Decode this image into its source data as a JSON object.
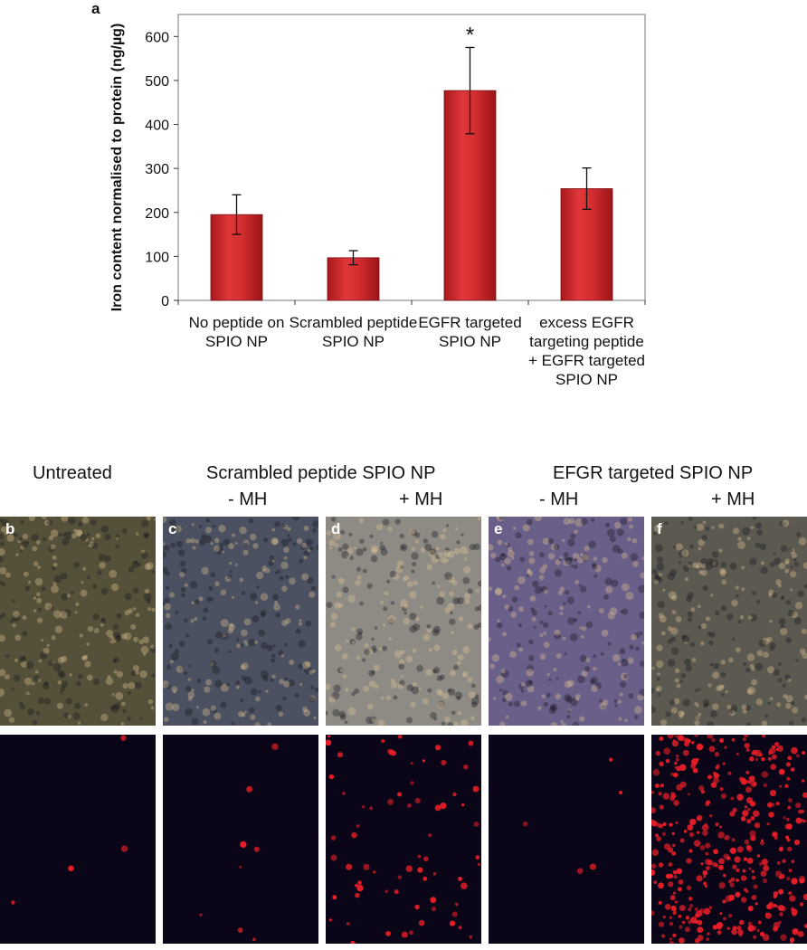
{
  "panel_letters": {
    "a": "a",
    "b": "b",
    "c": "c",
    "d": "d",
    "e": "e",
    "f": "f"
  },
  "chart_data": {
    "type": "bar",
    "ylabel": "Iron content normalised to protein (ng/µg)",
    "ylim": [
      0,
      650
    ],
    "yticks": [
      0,
      100,
      200,
      300,
      400,
      500,
      600
    ],
    "grid": false,
    "categories": [
      [
        "No peptide on",
        "SPIO NP"
      ],
      [
        "Scrambled peptide",
        "SPIO NP"
      ],
      [
        "EGFR targeted",
        "SPIO NP"
      ],
      [
        "excess EGFR",
        "targeting peptide",
        "+ EGFR targeted",
        "SPIO NP"
      ]
    ],
    "values": [
      195,
      97,
      477,
      254
    ],
    "errors": [
      45,
      16,
      98,
      47
    ],
    "annotations": [
      "",
      "",
      "*",
      ""
    ],
    "bar_color": "#c8262a"
  },
  "micrographs": {
    "headers": {
      "untreated": "Untreated",
      "scrambled": "Scrambled peptide SPIO NP",
      "scrambled_minus": "- MH",
      "scrambled_plus": "+ MH",
      "egfr": "EFGR targeted SPIO NP",
      "egfr_minus": "- MH",
      "egfr_plus": "+ MH"
    },
    "panels": [
      {
        "letter": "b",
        "brightfield_color": "#55503a",
        "fluor_density": 4
      },
      {
        "letter": "c",
        "brightfield_color": "#4b5160",
        "fluor_density": 8
      },
      {
        "letter": "d",
        "brightfield_color": "#8e8a84",
        "fluor_density": 70
      },
      {
        "letter": "e",
        "brightfield_color": "#6a5f88",
        "fluor_density": 5
      },
      {
        "letter": "f",
        "brightfield_color": "#5c5a50",
        "fluor_density": 380
      }
    ]
  }
}
